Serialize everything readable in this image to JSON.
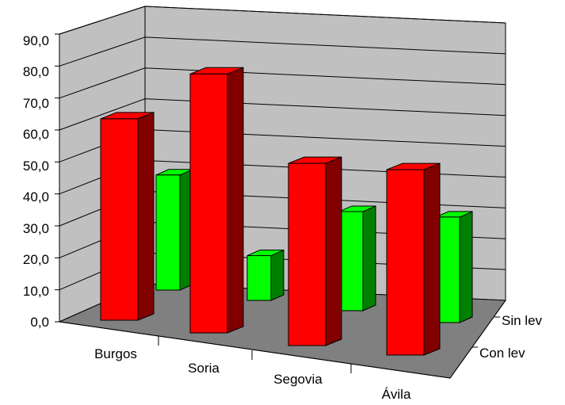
{
  "chart_data": {
    "type": "bar",
    "style": "3d-clustered-depth",
    "categories": [
      "Burgos",
      "Soria",
      "Segovia",
      "Ávila"
    ],
    "series": [
      {
        "name": "Con lev",
        "values": [
          63.0,
          81.0,
          57.0,
          58.0
        ]
      },
      {
        "name": "Sin lev",
        "values": [
          36.0,
          14.0,
          31.0,
          33.0
        ]
      }
    ],
    "y_ticks": [
      "0,0",
      "10,0",
      "20,0",
      "30,0",
      "40,0",
      "50,0",
      "60,0",
      "70,0",
      "80,0",
      "90,0"
    ],
    "ylim": [
      0,
      90
    ],
    "title": "",
    "xlabel": "",
    "ylabel": "",
    "grid": true,
    "legend": "none",
    "colors": {
      "front_series": "#ff0000",
      "back_series": "#00ff00",
      "wall": "#c0c0c0",
      "floor": "#808080"
    }
  }
}
